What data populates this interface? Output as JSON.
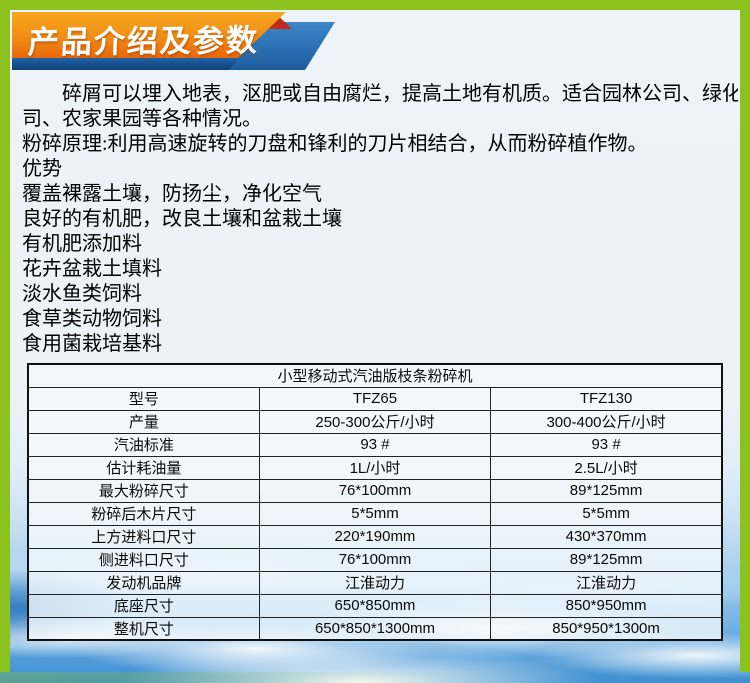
{
  "page": {
    "frame_color": "#8CC21E",
    "background_color": "#EDF2F8"
  },
  "banner": {
    "title": "产品介绍及参数",
    "orange_top": "#F7A71F",
    "orange_bottom": "#E8660C",
    "ribbon_blue": "#2E74B8",
    "navy": "#123F78",
    "fold_red": "#C22B16"
  },
  "intro": {
    "lines": [
      "　　碎屑可以埋入地表，沤肥或自由腐烂，提高土地有机质。适合园林公司、绿化公",
      "司、农家果园等各种情况。",
      "粉碎原理:利用高速旋转的刀盘和锋利的刀片相结合，从而粉碎植作物。",
      "优势",
      "覆盖裸露土壤，防扬尘，净化空气",
      "良好的有机肥，改良土壤和盆栽土壤",
      "有机肥添加料",
      "花卉盆栽土填料",
      "淡水鱼类饲料",
      "食草类动物饲料",
      "食用菌栽培基料"
    ]
  },
  "table": {
    "title": "小型移动式汽油版枝条粉碎机",
    "rows": [
      [
        "型号",
        "TFZ65",
        "TFZ130"
      ],
      [
        "产量",
        "250-300公斤/小时",
        "300-400公斤/小时"
      ],
      [
        "汽油标准",
        "93 #",
        "93 #"
      ],
      [
        "估计耗油量",
        "1L/小时",
        "2.5L/小时"
      ],
      [
        "最大粉碎尺寸",
        "76*100mm",
        "89*125mm"
      ],
      [
        "粉碎后木片尺寸",
        "5*5mm",
        "5*5mm"
      ],
      [
        "上方进料口尺寸",
        "220*190mm",
        "430*370mm"
      ],
      [
        "侧进料口尺寸",
        "76*100mm",
        "89*125mm"
      ],
      [
        "发动机品牌",
        "江淮动力",
        "江淮动力"
      ],
      [
        "底座尺寸",
        "650*850mm",
        "850*950mm"
      ],
      [
        "整机尺寸",
        "650*850*1300mm",
        "850*950*1300m"
      ]
    ]
  }
}
